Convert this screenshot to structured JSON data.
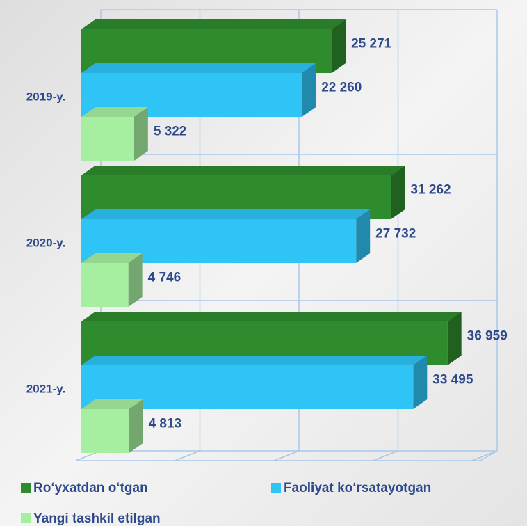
{
  "chart_data": {
    "type": "bar3d_horizontal",
    "categories": [
      "2019-y.",
      "2020-y.",
      "2021-y."
    ],
    "series": [
      {
        "name": "Ro‘yxatdan o‘tgan",
        "color": "#2e8b2e",
        "values": [
          25271,
          31262,
          36959
        ],
        "value_labels": [
          "25 271",
          "31 262",
          "36 959"
        ]
      },
      {
        "name": "Faoliyat ko‘rsatayotgan",
        "color": "#2ec4f5",
        "values": [
          22260,
          27732,
          33495
        ],
        "value_labels": [
          "22 260",
          "27 732",
          "33 495"
        ]
      },
      {
        "name": "Yangi tashkil etilgan",
        "color": "#a6eea0",
        "values": [
          5322,
          4746,
          4813
        ],
        "value_labels": [
          "5 322",
          "4 746",
          "4 813"
        ]
      }
    ],
    "xlim": [
      0,
      40000
    ],
    "xticks": [
      0,
      10000,
      20000,
      30000,
      40000
    ],
    "grid": true
  }
}
